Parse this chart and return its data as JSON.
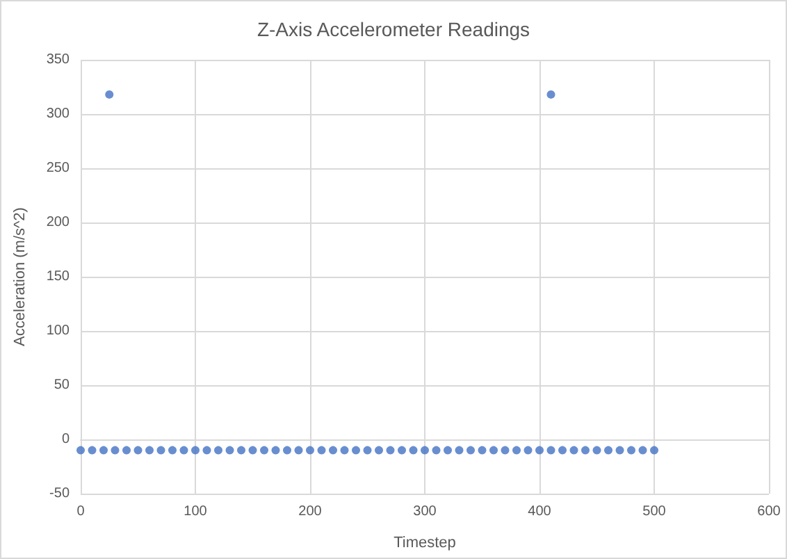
{
  "chart_data": {
    "type": "scatter",
    "title": "Z-Axis Accelerometer Readings",
    "xlabel": "Timestep",
    "ylabel": "Acceleration (m/s^2)",
    "x": [
      0,
      10,
      20,
      25,
      30,
      40,
      50,
      60,
      70,
      80,
      90,
      100,
      110,
      120,
      130,
      140,
      150,
      160,
      170,
      180,
      190,
      200,
      210,
      220,
      230,
      240,
      250,
      260,
      270,
      280,
      290,
      300,
      310,
      320,
      330,
      340,
      350,
      360,
      370,
      380,
      390,
      400,
      410,
      410,
      420,
      430,
      440,
      450,
      460,
      470,
      480,
      490,
      500
    ],
    "series": [
      {
        "color": "#4472c4",
        "values": [
          -10,
          -10,
          -10,
          318,
          -10,
          -10,
          -10,
          -10,
          -10,
          -10,
          -10,
          -10,
          -10,
          -10,
          -10,
          -10,
          -10,
          -10,
          -10,
          -10,
          -10,
          -10,
          -10,
          -10,
          -10,
          -10,
          -10,
          -10,
          -10,
          -10,
          -10,
          -10,
          -10,
          -10,
          -10,
          -10,
          -10,
          -10,
          -10,
          -10,
          -10,
          -10,
          -10,
          318,
          -10,
          -10,
          -10,
          -10,
          -10,
          -10,
          -10,
          -10,
          -10
        ]
      }
    ],
    "xlim": [
      0,
      600
    ],
    "xticks": [
      0,
      100,
      200,
      300,
      400,
      500,
      600
    ],
    "ylim": [
      -50,
      350
    ],
    "yticks": [
      -50,
      0,
      50,
      100,
      150,
      200,
      250,
      300,
      350
    ],
    "grid": true,
    "marker": "circle"
  }
}
